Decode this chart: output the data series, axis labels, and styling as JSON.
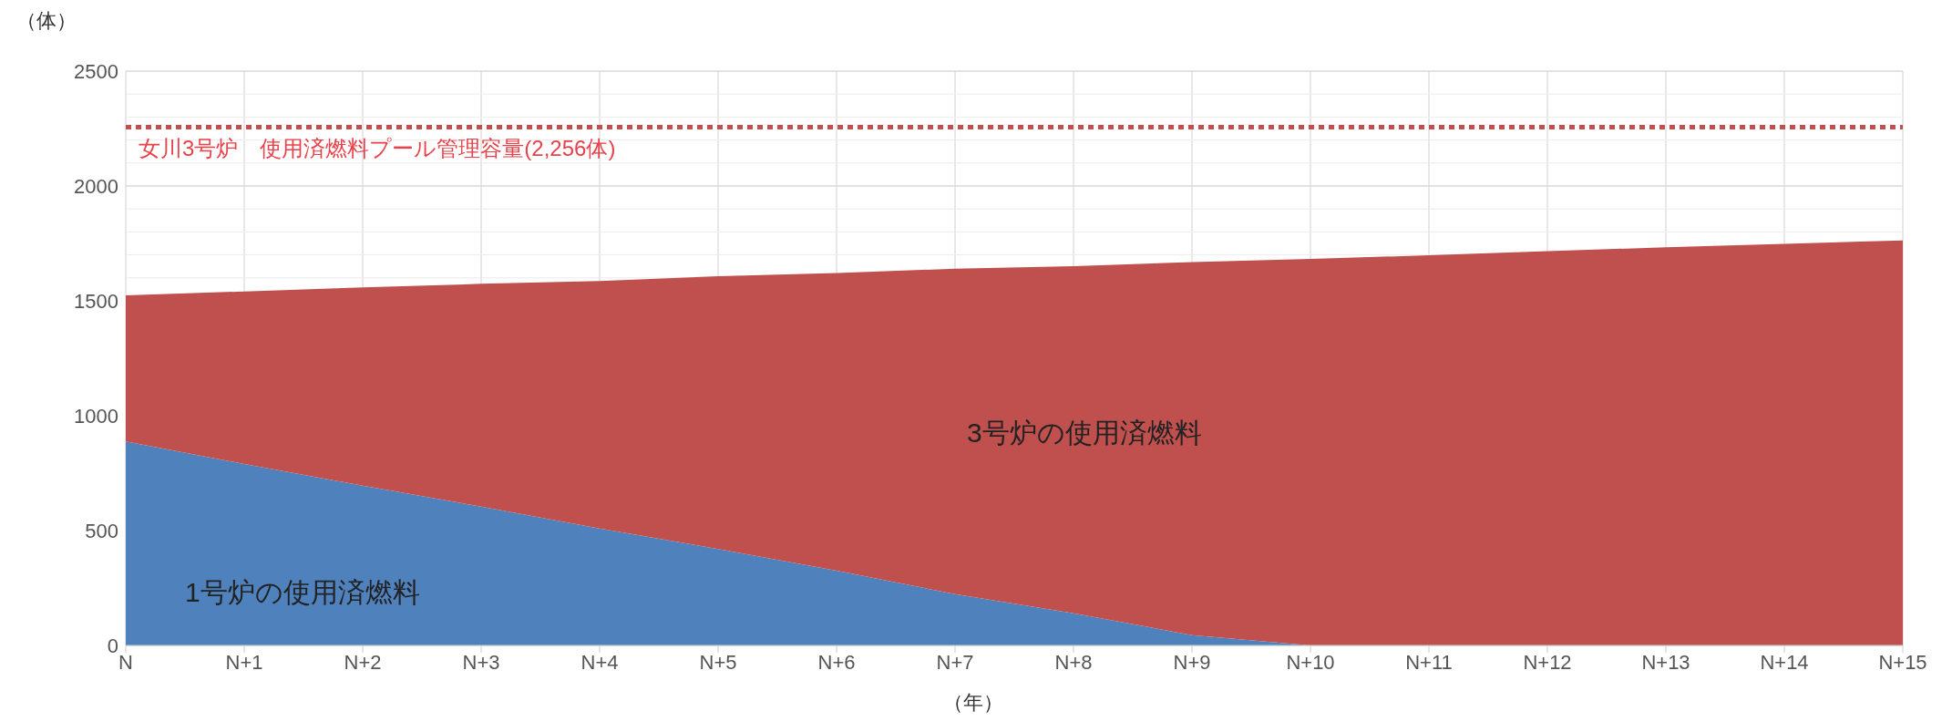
{
  "chart_data": {
    "type": "area",
    "stacked": true,
    "xlabel": "（年）",
    "ylabel": "（体）",
    "categories": [
      "N",
      "N+1",
      "N+2",
      "N+3",
      "N+4",
      "N+5",
      "N+6",
      "N+7",
      "N+8",
      "N+9",
      "N+10",
      "N+11",
      "N+12",
      "N+13",
      "N+14",
      "N+15"
    ],
    "series": [
      {
        "name": "1号炉の使用済燃料",
        "color": "#4f81bd",
        "values": [
          888,
          790,
          695,
          604,
          509,
          420,
          325,
          223,
          140,
          45,
          0,
          0,
          0,
          0,
          0,
          0
        ]
      },
      {
        "name": "3号炉の使用済燃料",
        "color": "#c0504d",
        "values": [
          636,
          751,
          864,
          970,
          1077,
          1187,
          1296,
          1417,
          1511,
          1624,
          1683,
          1698,
          1716,
          1733,
          1748,
          1763
        ]
      }
    ],
    "ylim": [
      0,
      2500
    ],
    "yticks": [
      0,
      500,
      1000,
      1500,
      2000,
      2500
    ],
    "grid": true,
    "legend": false,
    "ref_lines": [
      {
        "axis": "y",
        "value": 2256,
        "label": "女川3号炉　使用済燃料プール管理容量(2,256体)",
        "color": "#c0504d",
        "line_style": "dotted"
      }
    ]
  }
}
